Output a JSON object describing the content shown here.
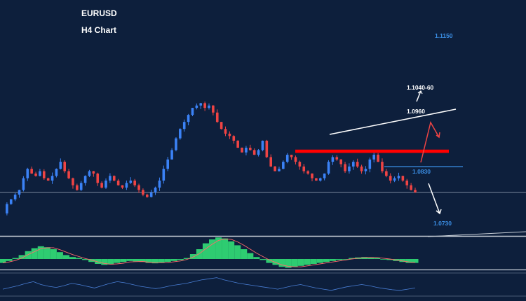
{
  "header": {
    "symbol": "EURUSD",
    "timeframe": "H4 Chart"
  },
  "chart_data": {
    "type": "candlestick",
    "symbol": "EURUSD",
    "timeframe": "H4",
    "price_axis": {
      "min": 1.07,
      "max": 1.17
    },
    "background": "#0d1f3c",
    "colors": {
      "up_candle": "#3b82f6",
      "down_candle": "#ef4444",
      "resistance_zone": "#ff0000",
      "text_white": "#ffffff",
      "text_blue": "#3b8fe6",
      "histogram": "#2ecc71",
      "signal_line": "#ff6b6b"
    },
    "levels": [
      {
        "price": 1.115,
        "label": "1.1150",
        "style": "label"
      },
      {
        "price": 1.104,
        "label": "1.1040-60",
        "style": "zone"
      },
      {
        "price": 1.096,
        "label": "1.0960",
        "style": "trendline-label"
      },
      {
        "price": 1.083,
        "label": "1.0830",
        "style": "line"
      },
      {
        "price": 1.073,
        "label": "1.0730",
        "style": "target"
      }
    ],
    "current_price": 1.088,
    "price_path": [
      1.079,
      1.083,
      1.085,
      1.087,
      1.089,
      1.094,
      1.098,
      1.096,
      1.095,
      1.097,
      1.094,
      1.093,
      1.095,
      1.098,
      1.101,
      1.097,
      1.094,
      1.091,
      1.089,
      1.092,
      1.095,
      1.097,
      1.096,
      1.092,
      1.09,
      1.093,
      1.095,
      1.093,
      1.091,
      1.09,
      1.092,
      1.093,
      1.091,
      1.089,
      1.087,
      1.086,
      1.088,
      1.09,
      1.093,
      1.098,
      1.102,
      1.106,
      1.111,
      1.115,
      1.118,
      1.121,
      1.124,
      1.125,
      1.126,
      1.124,
      1.125,
      1.122,
      1.118,
      1.115,
      1.113,
      1.112,
      1.11,
      1.107,
      1.105,
      1.107,
      1.106,
      1.104,
      1.106,
      1.11,
      1.103,
      1.099,
      1.097,
      1.098,
      1.101,
      1.104,
      1.103,
      1.101,
      1.099,
      1.097,
      1.096,
      1.094,
      1.093,
      1.094,
      1.096,
      1.101,
      1.103,
      1.102,
      1.1,
      1.097,
      1.099,
      1.101,
      1.099,
      1.097,
      1.098,
      1.102,
      1.104,
      1.101,
      1.097,
      1.095,
      1.093,
      1.094,
      1.095,
      1.093,
      1.091,
      1.089,
      1.088
    ],
    "macd_histogram": [
      -0.2,
      -0.1,
      0.05,
      0.2,
      0.4,
      0.55,
      0.65,
      0.6,
      0.5,
      0.35,
      0.2,
      0.1,
      0.05,
      -0.05,
      -0.15,
      -0.25,
      -0.3,
      -0.28,
      -0.2,
      -0.15,
      -0.1,
      -0.12,
      -0.15,
      -0.2,
      -0.22,
      -0.18,
      -0.15,
      -0.1,
      -0.05,
      0.05,
      0.25,
      0.5,
      0.8,
      1.0,
      1.1,
      1.05,
      0.9,
      0.7,
      0.5,
      0.3,
      0.1,
      -0.05,
      -0.2,
      -0.3,
      -0.4,
      -0.45,
      -0.4,
      -0.35,
      -0.3,
      -0.25,
      -0.2,
      -0.15,
      -0.1,
      -0.05,
      0.0,
      0.05,
      0.08,
      0.1,
      0.08,
      0.05,
      0.0,
      -0.05,
      -0.1,
      -0.15,
      -0.2,
      -0.2
    ],
    "rsi": [
      42,
      45,
      48,
      52,
      55,
      50,
      47,
      45,
      48,
      52,
      50,
      47,
      44,
      48,
      52,
      55,
      53,
      50,
      47,
      45,
      43,
      45,
      48,
      50,
      52,
      55,
      58,
      60,
      62,
      58,
      55,
      52,
      50,
      48,
      46,
      44,
      42,
      45,
      48,
      50,
      47,
      44,
      42,
      40,
      43,
      46,
      48,
      50,
      48,
      45,
      43,
      41,
      40,
      42,
      44
    ]
  }
}
